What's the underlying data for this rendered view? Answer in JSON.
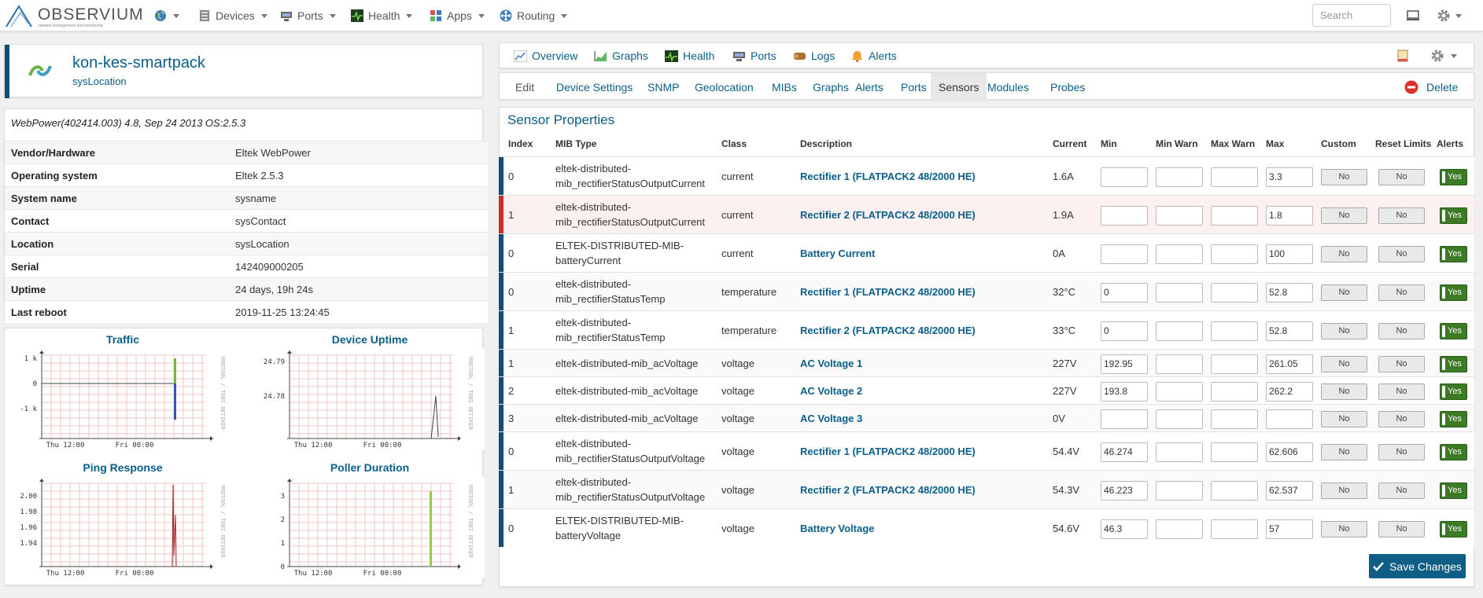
{
  "brand": {
    "name": "OBSERVIUM",
    "tagline": "network management and monitoring"
  },
  "nav": {
    "devices": "Devices",
    "ports": "Ports",
    "health": "Health",
    "apps": "Apps",
    "routing": "Routing",
    "search_placeholder": "Search"
  },
  "device": {
    "hostname": "kon-kes-smartpack",
    "location": "sysLocation",
    "description": "WebPower(402414.003) 4.8, Sep 24 2013 OS:2.5.3",
    "info": [
      {
        "label": "Vendor/Hardware",
        "value": "Eltek WebPower"
      },
      {
        "label": "Operating system",
        "value": "Eltek 2.5.3"
      },
      {
        "label": "System name",
        "value": "sysname"
      },
      {
        "label": "Contact",
        "value": "sysContact"
      },
      {
        "label": "Location",
        "value": "sysLocation"
      },
      {
        "label": "Serial",
        "value": "142409000205"
      },
      {
        "label": "Uptime",
        "value": "24 days, 19h 24s"
      },
      {
        "label": "Last reboot",
        "value": "2019-11-25 13:24:45"
      }
    ]
  },
  "graphs": {
    "traffic": {
      "title": "Traffic",
      "y_ticks": [
        "1 k",
        "0",
        "-1 k"
      ],
      "x_ticks": [
        "Thu 12:00",
        "Fri 00:00"
      ],
      "side": "RRDTOOL / TOBI OETIKER"
    },
    "uptime": {
      "title": "Device Uptime",
      "y_ticks": [
        "24.79",
        "24.78"
      ],
      "x_ticks": [
        "Thu 12:00",
        "Fri 00:00"
      ],
      "side": "RRDTOOL / TOBI OETIKER"
    },
    "ping": {
      "title": "Ping Response",
      "y_ticks": [
        "2.00",
        "1.98",
        "1.96",
        "1.94"
      ],
      "x_ticks": [
        "Thu 12:00",
        "Fri 00:00"
      ],
      "side": "RRDTOOL / TOBI OETIKER"
    },
    "poller": {
      "title": "Poller Duration",
      "y_ticks": [
        "3",
        "2",
        "1",
        "0"
      ],
      "x_ticks": [
        "Thu 12:00",
        "Fri 00:00"
      ],
      "side": "RRDTOOL / TOBI OETIKER"
    }
  },
  "tabs": {
    "overview": "Overview",
    "graphs": "Graphs",
    "health": "Health",
    "ports": "Ports",
    "logs": "Logs",
    "alerts": "Alerts"
  },
  "subtabs": [
    "Edit",
    "Device Settings",
    "SNMP",
    "Geolocation",
    "MIBs",
    "Graphs",
    "Alerts",
    "Ports",
    "Sensors",
    "Modules",
    "Probes"
  ],
  "active_subtab": "Sensors",
  "delete_label": "Delete",
  "panel_title": "Sensor Properties",
  "columns": [
    "Index",
    "MIB Type",
    "Class",
    "Description",
    "Current",
    "Min",
    "Min Warn",
    "Max Warn",
    "Max",
    "Custom",
    "Reset Limits",
    "Alerts"
  ],
  "sensors": [
    {
      "index": "0",
      "mib": [
        "eltek-distributed-",
        "mib_rectifierStatusOutputCurrent"
      ],
      "class": "current",
      "desc": "Rectifier 1 (FLATPACK2 48/2000 HE)",
      "current": "1.6A",
      "min": "",
      "min_warn": "",
      "max_warn": "",
      "max": "3.3",
      "custom": "No",
      "reset": "No",
      "alerts": "Yes",
      "status": "ok"
    },
    {
      "index": "1",
      "mib": [
        "eltek-distributed-",
        "mib_rectifierStatusOutputCurrent"
      ],
      "class": "current",
      "desc": "Rectifier 2 (FLATPACK2 48/2000 HE)",
      "current": "1.9A",
      "min": "",
      "min_warn": "",
      "max_warn": "",
      "max": "1.8",
      "custom": "No",
      "reset": "No",
      "alerts": "Yes",
      "status": "alert"
    },
    {
      "index": "0",
      "mib": [
        "ELTEK-DISTRIBUTED-MIB-",
        "batteryCurrent"
      ],
      "class": "current",
      "desc": "Battery Current",
      "current": "0A",
      "min": "",
      "min_warn": "",
      "max_warn": "",
      "max": "100",
      "custom": "No",
      "reset": "No",
      "alerts": "Yes",
      "status": "ok"
    },
    {
      "index": "0",
      "mib": [
        "eltek-distributed-",
        "mib_rectifierStatusTemp"
      ],
      "class": "temperature",
      "desc": "Rectifier 1 (FLATPACK2 48/2000 HE)",
      "current": "32°C",
      "min": "0",
      "min_warn": "",
      "max_warn": "",
      "max": "52.8",
      "custom": "No",
      "reset": "No",
      "alerts": "Yes",
      "status": "ok"
    },
    {
      "index": "1",
      "mib": [
        "eltek-distributed-",
        "mib_rectifierStatusTemp"
      ],
      "class": "temperature",
      "desc": "Rectifier 2 (FLATPACK2 48/2000 HE)",
      "current": "33°C",
      "min": "0",
      "min_warn": "",
      "max_warn": "",
      "max": "52.8",
      "custom": "No",
      "reset": "No",
      "alerts": "Yes",
      "status": "ok"
    },
    {
      "index": "1",
      "mib": [
        "eltek-distributed-mib_acVoltage"
      ],
      "class": "voltage",
      "desc": "AC Voltage 1",
      "current": "227V",
      "min": "192.95",
      "min_warn": "",
      "max_warn": "",
      "max": "261.05",
      "custom": "No",
      "reset": "No",
      "alerts": "Yes",
      "status": "ok"
    },
    {
      "index": "2",
      "mib": [
        "eltek-distributed-mib_acVoltage"
      ],
      "class": "voltage",
      "desc": "AC Voltage 2",
      "current": "227V",
      "min": "193.8",
      "min_warn": "",
      "max_warn": "",
      "max": "262.2",
      "custom": "No",
      "reset": "No",
      "alerts": "Yes",
      "status": "ok"
    },
    {
      "index": "3",
      "mib": [
        "eltek-distributed-mib_acVoltage"
      ],
      "class": "voltage",
      "desc": "AC Voltage 3",
      "current": "0V",
      "min": "",
      "min_warn": "",
      "max_warn": "",
      "max": "",
      "custom": "No",
      "reset": "No",
      "alerts": "Yes",
      "status": "ok"
    },
    {
      "index": "0",
      "mib": [
        "eltek-distributed-",
        "mib_rectifierStatusOutputVoltage"
      ],
      "class": "voltage",
      "desc": "Rectifier 1 (FLATPACK2 48/2000 HE)",
      "current": "54.4V",
      "min": "46.274",
      "min_warn": "",
      "max_warn": "",
      "max": "62.606",
      "custom": "No",
      "reset": "No",
      "alerts": "Yes",
      "status": "ok"
    },
    {
      "index": "1",
      "mib": [
        "eltek-distributed-",
        "mib_rectifierStatusOutputVoltage"
      ],
      "class": "voltage",
      "desc": "Rectifier 2 (FLATPACK2 48/2000 HE)",
      "current": "54.3V",
      "min": "46.223",
      "min_warn": "",
      "max_warn": "",
      "max": "62.537",
      "custom": "No",
      "reset": "No",
      "alerts": "Yes",
      "status": "ok"
    },
    {
      "index": "0",
      "mib": [
        "ELTEK-DISTRIBUTED-MIB-",
        "batteryVoltage"
      ],
      "class": "voltage",
      "desc": "Battery Voltage",
      "current": "54.6V",
      "min": "46.3",
      "min_warn": "",
      "max_warn": "",
      "max": "57",
      "custom": "No",
      "reset": "No",
      "alerts": "Yes",
      "status": "ok"
    }
  ],
  "save_label": "Save Changes",
  "colors": {
    "accent": "#0a5f8a",
    "ok_bar": "#0e4e72",
    "alert_bar": "#c9302c",
    "alert_row_bg": "#fdf0f0",
    "yes_toggle": "#3c7a26"
  }
}
